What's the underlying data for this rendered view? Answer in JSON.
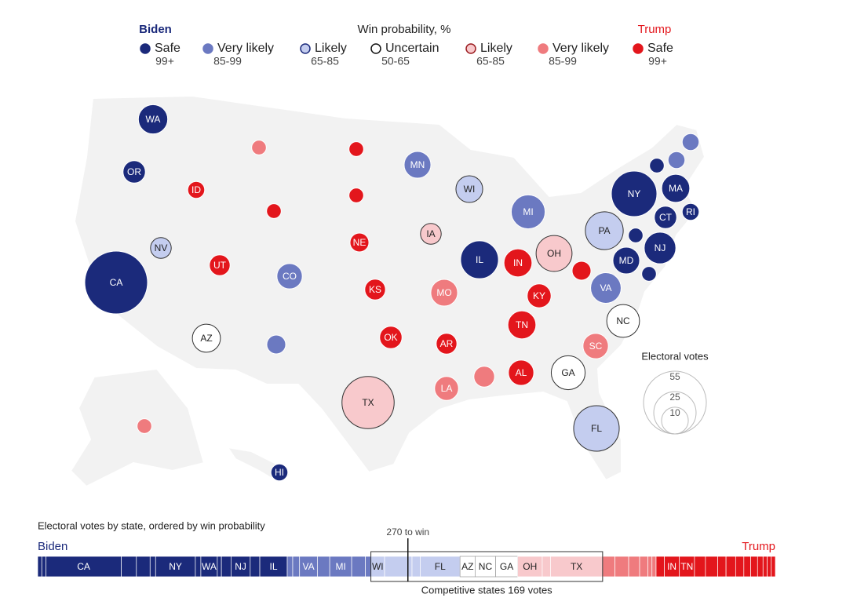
{
  "legend": {
    "left": "Biden",
    "title": "Win probability, %",
    "right": "Trump",
    "items": [
      {
        "name": "Safe",
        "range": "99+",
        "color": "#1b2a7b"
      },
      {
        "name": "Very likely",
        "range": "85-99",
        "color": "#6b79c1"
      },
      {
        "name": "Likely",
        "range": "65-85",
        "color": "#c4cdef"
      },
      {
        "name": "Uncertain",
        "range": "50-65",
        "color": "#ffffff"
      },
      {
        "name": "Likely",
        "range": "65-85",
        "color": "#f8c9cc"
      },
      {
        "name": "Very likely",
        "range": "85-99",
        "color": "#ef7b7e"
      },
      {
        "name": "Safe",
        "range": "99+",
        "color": "#e3161c"
      }
    ]
  },
  "states": [
    {
      "label": "WA",
      "ev": 12,
      "rating": 0
    },
    {
      "label": "OR",
      "ev": 7,
      "rating": 0
    },
    {
      "label": "CA",
      "ev": 55,
      "rating": 0
    },
    {
      "label": "NV",
      "ev": 6,
      "rating": 2
    },
    {
      "label": "ID",
      "ev": 4,
      "rating": 6
    },
    {
      "label": null,
      "ev": 3,
      "rating": 5
    },
    {
      "label": null,
      "ev": 3,
      "rating": 6
    },
    {
      "label": "UT",
      "ev": 6,
      "rating": 6
    },
    {
      "label": "CO",
      "ev": 9,
      "rating": 1
    },
    {
      "label": "AZ",
      "ev": 11,
      "rating": 3
    },
    {
      "label": null,
      "ev": 5,
      "rating": 1
    },
    {
      "label": null,
      "ev": 3,
      "rating": 6
    },
    {
      "label": null,
      "ev": 3,
      "rating": 6
    },
    {
      "label": "NE",
      "ev": 5,
      "rating": 6
    },
    {
      "label": "KS",
      "ev": 6,
      "rating": 6
    },
    {
      "label": "OK",
      "ev": 7,
      "rating": 6
    },
    {
      "label": "TX",
      "ev": 38,
      "rating": 4
    },
    {
      "label": "MN",
      "ev": 10,
      "rating": 1
    },
    {
      "label": "IA",
      "ev": 6,
      "rating": 4
    },
    {
      "label": "MO",
      "ev": 10,
      "rating": 5
    },
    {
      "label": "AR",
      "ev": 6,
      "rating": 6
    },
    {
      "label": "LA",
      "ev": 8,
      "rating": 5
    },
    {
      "label": "WI",
      "ev": 10,
      "rating": 2
    },
    {
      "label": "IL",
      "ev": 20,
      "rating": 0
    },
    {
      "label": "MI",
      "ev": 16,
      "rating": 1
    },
    {
      "label": "IN",
      "ev": 11,
      "rating": 6
    },
    {
      "label": "OH",
      "ev": 18,
      "rating": 4
    },
    {
      "label": "KY",
      "ev": 8,
      "rating": 6
    },
    {
      "label": "TN",
      "ev": 11,
      "rating": 6
    },
    {
      "label": null,
      "ev": 6,
      "rating": 5
    },
    {
      "label": "AL",
      "ev": 9,
      "rating": 6
    },
    {
      "label": "GA",
      "ev": 16,
      "rating": 3
    },
    {
      "label": "FL",
      "ev": 29,
      "rating": 2
    },
    {
      "label": "SC",
      "ev": 9,
      "rating": 5
    },
    {
      "label": "NC",
      "ev": 15,
      "rating": 3
    },
    {
      "label": "VA",
      "ev": 13,
      "rating": 1
    },
    {
      "label": null,
      "ev": 5,
      "rating": 6
    },
    {
      "label": "PA",
      "ev": 20,
      "rating": 2
    },
    {
      "label": "NY",
      "ev": 29,
      "rating": 0
    },
    {
      "label": "NJ",
      "ev": 14,
      "rating": 0
    },
    {
      "label": "MD",
      "ev": 10,
      "rating": 0
    },
    {
      "label": null,
      "ev": 3,
      "rating": 0
    },
    {
      "label": null,
      "ev": 3,
      "rating": 0
    },
    {
      "label": "CT",
      "ev": 7,
      "rating": 0
    },
    {
      "label": "RI",
      "ev": 4,
      "rating": 0
    },
    {
      "label": "MA",
      "ev": 11,
      "rating": 0
    },
    {
      "label": null,
      "ev": 3,
      "rating": 0
    },
    {
      "label": null,
      "ev": 4,
      "rating": 1
    },
    {
      "label": null,
      "ev": 4,
      "rating": 1
    },
    {
      "label": "HI",
      "ev": 4,
      "rating": 0
    },
    {
      "label": null,
      "ev": 3,
      "rating": 5
    }
  ],
  "size_legend": {
    "title": "Electoral votes",
    "values": [
      55,
      25,
      10
    ]
  },
  "bar": {
    "title": "Electoral votes by state, ordered by win probability",
    "left": "Biden",
    "right": "Trump",
    "threshold": {
      "value": 270,
      "label": "270 to win"
    },
    "note": "Competitive states 169 votes",
    "segments": [
      {
        "label": null,
        "ev": 3,
        "rating": 0
      },
      {
        "label": null,
        "ev": 3,
        "rating": 0
      },
      {
        "label": "CA",
        "ev": 55,
        "rating": 0
      },
      {
        "label": null,
        "ev": 11,
        "rating": 0
      },
      {
        "label": null,
        "ev": 10,
        "rating": 0
      },
      {
        "label": null,
        "ev": 4,
        "rating": 0
      },
      {
        "label": "NY",
        "ev": 29,
        "rating": 0
      },
      {
        "label": null,
        "ev": 4,
        "rating": 0
      },
      {
        "label": "WA",
        "ev": 12,
        "rating": 0
      },
      {
        "label": null,
        "ev": 3,
        "rating": 0
      },
      {
        "label": null,
        "ev": 7,
        "rating": 0
      },
      {
        "label": "NJ",
        "ev": 14,
        "rating": 0
      },
      {
        "label": null,
        "ev": 7,
        "rating": 0
      },
      {
        "label": "IL",
        "ev": 20,
        "rating": 0
      },
      {
        "label": null,
        "ev": 4,
        "rating": 1
      },
      {
        "label": null,
        "ev": 5,
        "rating": 1
      },
      {
        "label": "VA",
        "ev": 13,
        "rating": 1
      },
      {
        "label": null,
        "ev": 9,
        "rating": 1
      },
      {
        "label": "MI",
        "ev": 16,
        "rating": 1
      },
      {
        "label": null,
        "ev": 10,
        "rating": 1
      },
      {
        "label": null,
        "ev": 4,
        "rating": 1
      },
      {
        "label": "WI",
        "ev": 10,
        "rating": 2
      },
      {
        "label": null,
        "ev": 20,
        "rating": 2
      },
      {
        "label": null,
        "ev": 6,
        "rating": 2
      },
      {
        "label": "FL",
        "ev": 29,
        "rating": 2
      },
      {
        "label": "AZ",
        "ev": 11,
        "rating": 3
      },
      {
        "label": "NC",
        "ev": 15,
        "rating": 3
      },
      {
        "label": "GA",
        "ev": 16,
        "rating": 3
      },
      {
        "label": "OH",
        "ev": 18,
        "rating": 4
      },
      {
        "label": null,
        "ev": 6,
        "rating": 4
      },
      {
        "label": "TX",
        "ev": 38,
        "rating": 4
      },
      {
        "label": null,
        "ev": 9,
        "rating": 5
      },
      {
        "label": null,
        "ev": 10,
        "rating": 5
      },
      {
        "label": null,
        "ev": 8,
        "rating": 5
      },
      {
        "label": null,
        "ev": 6,
        "rating": 5
      },
      {
        "label": null,
        "ev": 3,
        "rating": 5
      },
      {
        "label": null,
        "ev": 3,
        "rating": 5
      },
      {
        "label": null,
        "ev": 6,
        "rating": 6
      },
      {
        "label": "IN",
        "ev": 11,
        "rating": 6
      },
      {
        "label": "TN",
        "ev": 11,
        "rating": 6
      },
      {
        "label": null,
        "ev": 8,
        "rating": 6
      },
      {
        "label": null,
        "ev": 9,
        "rating": 6
      },
      {
        "label": null,
        "ev": 6,
        "rating": 6
      },
      {
        "label": null,
        "ev": 7,
        "rating": 6
      },
      {
        "label": null,
        "ev": 6,
        "rating": 6
      },
      {
        "label": null,
        "ev": 5,
        "rating": 6
      },
      {
        "label": null,
        "ev": 5,
        "rating": 6
      },
      {
        "label": null,
        "ev": 4,
        "rating": 6
      },
      {
        "label": null,
        "ev": 3,
        "rating": 6
      },
      {
        "label": null,
        "ev": 3,
        "rating": 6
      },
      {
        "label": null,
        "ev": 3,
        "rating": 6
      }
    ]
  }
}
